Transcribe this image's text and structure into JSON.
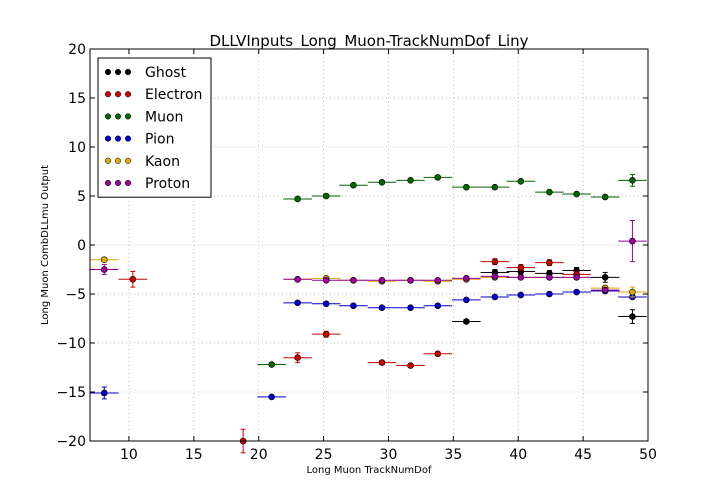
{
  "chart_data": {
    "type": "scatter",
    "title": "DLLVInputs_Long_Muon-TrackNumDof_Liny",
    "xlabel": "Long Muon TrackNumDof",
    "ylabel": "Long Muon CombDLLmu Output",
    "xlim": [
      7,
      50
    ],
    "ylim": [
      -20,
      20
    ],
    "xticks": [
      10,
      15,
      20,
      25,
      30,
      35,
      40,
      45,
      50
    ],
    "yticks": [
      -20,
      -15,
      -10,
      -5,
      0,
      5,
      10,
      15,
      20
    ],
    "grid": true,
    "legend_position": "top-left",
    "series": [
      {
        "name": "Ghost",
        "color": "#000000",
        "points": [
          [
            36.0,
            -7.8,
            1.1,
            0.2
          ],
          [
            38.2,
            -2.8,
            1.1,
            0.3
          ],
          [
            40.2,
            -2.7,
            1.1,
            0.3
          ],
          [
            42.4,
            -2.9,
            1.1,
            0.3
          ],
          [
            44.5,
            -2.6,
            1.1,
            0.3
          ],
          [
            46.7,
            -3.3,
            1.1,
            0.5
          ],
          [
            48.8,
            -7.3,
            1.1,
            0.7
          ]
        ]
      },
      {
        "name": "Electron",
        "color": "#cc0000",
        "points": [
          [
            10.3,
            -3.5,
            1.1,
            0.8
          ],
          [
            18.8,
            -20.0,
            1.1,
            1.2
          ],
          [
            23.0,
            -11.5,
            1.1,
            0.5
          ],
          [
            25.2,
            -9.1,
            1.1,
            0.3
          ],
          [
            29.5,
            -12.0,
            1.1,
            0.2
          ],
          [
            31.7,
            -12.3,
            1.1,
            0.2
          ],
          [
            33.8,
            -11.1,
            1.1,
            0.2
          ],
          [
            38.2,
            -1.7,
            1.1,
            0.3
          ],
          [
            40.2,
            -2.3,
            1.1,
            0.3
          ],
          [
            42.4,
            -1.8,
            1.1,
            0.3
          ],
          [
            44.5,
            -3.0,
            1.1,
            0.3
          ]
        ]
      },
      {
        "name": "Muon",
        "color": "#006600",
        "points": [
          [
            21.0,
            -12.2,
            1.1,
            0.1
          ],
          [
            23.0,
            4.7,
            1.1,
            0.1
          ],
          [
            25.2,
            5.0,
            1.1,
            0.1
          ],
          [
            27.3,
            6.1,
            1.1,
            0.1
          ],
          [
            29.5,
            6.4,
            1.1,
            0.1
          ],
          [
            31.7,
            6.6,
            1.1,
            0.1
          ],
          [
            33.8,
            6.9,
            1.1,
            0.1
          ],
          [
            36.0,
            5.9,
            1.1,
            0.1
          ],
          [
            38.2,
            5.9,
            1.1,
            0.1
          ],
          [
            40.2,
            6.5,
            1.1,
            0.1
          ],
          [
            42.4,
            5.4,
            1.1,
            0.1
          ],
          [
            44.5,
            5.2,
            1.1,
            0.1
          ],
          [
            46.7,
            4.9,
            1.1,
            0.1
          ],
          [
            48.8,
            6.6,
            1.1,
            0.6
          ]
        ]
      },
      {
        "name": "Pion",
        "color": "#0000cc",
        "points": [
          [
            8.1,
            -15.1,
            1.1,
            0.6
          ],
          [
            21.0,
            -15.5,
            1.1,
            0.1
          ],
          [
            23.0,
            -5.9,
            1.1,
            0.1
          ],
          [
            25.2,
            -6.0,
            1.1,
            0.1
          ],
          [
            27.3,
            -6.2,
            1.1,
            0.1
          ],
          [
            29.5,
            -6.4,
            1.1,
            0.1
          ],
          [
            31.7,
            -6.4,
            1.1,
            0.1
          ],
          [
            33.8,
            -6.2,
            1.1,
            0.1
          ],
          [
            36.0,
            -5.6,
            1.1,
            0.1
          ],
          [
            38.2,
            -5.3,
            1.1,
            0.1
          ],
          [
            40.2,
            -5.1,
            1.1,
            0.1
          ],
          [
            42.4,
            -5.0,
            1.1,
            0.1
          ],
          [
            44.5,
            -4.8,
            1.1,
            0.1
          ],
          [
            46.7,
            -4.7,
            1.1,
            0.1
          ],
          [
            48.8,
            -5.3,
            1.1,
            0.2
          ]
        ]
      },
      {
        "name": "Kaon",
        "color": "#ddaa00",
        "points": [
          [
            8.1,
            -1.5,
            1.1,
            0.2
          ],
          [
            23.0,
            -3.5,
            1.1,
            0.1
          ],
          [
            25.2,
            -3.4,
            1.1,
            0.1
          ],
          [
            27.3,
            -3.6,
            1.1,
            0.1
          ],
          [
            29.5,
            -3.7,
            1.1,
            0.1
          ],
          [
            31.7,
            -3.6,
            1.1,
            0.1
          ],
          [
            33.8,
            -3.7,
            1.1,
            0.1
          ],
          [
            36.0,
            -3.5,
            1.1,
            0.1
          ],
          [
            38.2,
            -3.3,
            1.1,
            0.1
          ],
          [
            40.2,
            -3.3,
            1.1,
            0.1
          ],
          [
            42.4,
            -3.3,
            1.1,
            0.1
          ],
          [
            44.5,
            -3.3,
            1.1,
            0.1
          ],
          [
            46.7,
            -4.4,
            1.1,
            0.3
          ],
          [
            48.8,
            -4.8,
            1.1,
            0.5
          ]
        ]
      },
      {
        "name": "Proton",
        "color": "#990099",
        "points": [
          [
            8.1,
            -2.5,
            1.1,
            0.5
          ],
          [
            23.0,
            -3.5,
            1.1,
            0.1
          ],
          [
            25.2,
            -3.6,
            1.1,
            0.1
          ],
          [
            27.3,
            -3.6,
            1.1,
            0.1
          ],
          [
            29.5,
            -3.6,
            1.1,
            0.1
          ],
          [
            31.7,
            -3.6,
            1.1,
            0.1
          ],
          [
            33.8,
            -3.6,
            1.1,
            0.1
          ],
          [
            36.0,
            -3.4,
            1.1,
            0.1
          ],
          [
            38.2,
            -3.2,
            1.1,
            0.1
          ],
          [
            40.2,
            -3.3,
            1.1,
            0.1
          ],
          [
            42.4,
            -3.3,
            1.1,
            0.1
          ],
          [
            44.5,
            -3.3,
            1.1,
            0.1
          ],
          [
            46.7,
            -4.6,
            1.1,
            0.2
          ],
          [
            48.8,
            0.4,
            1.1,
            2.1
          ]
        ]
      }
    ]
  }
}
